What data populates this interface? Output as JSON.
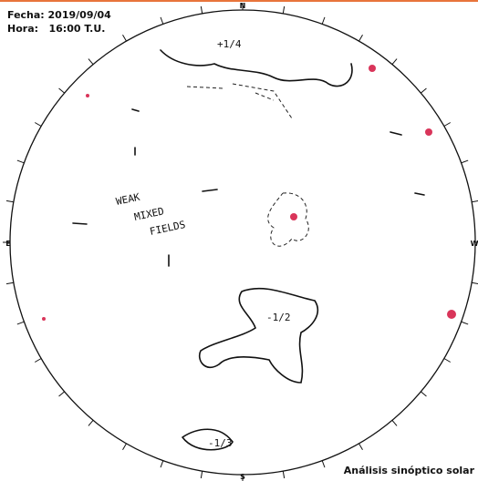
{
  "header": {
    "date": "Fecha: 2019/09/04",
    "time": "Hora:   16:00 T.U."
  },
  "compass": {
    "north": "N",
    "south": "S",
    "east": "E",
    "west": "W"
  },
  "annotations": {
    "north_region": "+1/4",
    "weak": "WEAK",
    "mixed": "MIXED",
    "fields": "FIELDS",
    "center_region": "-1/2",
    "south_region": "-1/3"
  },
  "footer": "Análisis sinóptico solar"
}
